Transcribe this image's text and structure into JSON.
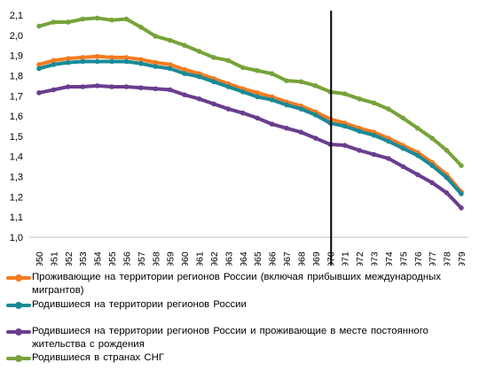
{
  "chart_data": {
    "type": "line",
    "title": "",
    "xlabel": "",
    "ylabel": "",
    "ylim": [
      1.0,
      2.1
    ],
    "ytick_step": 0.1,
    "grid": false,
    "legend_position": "bottom",
    "marker_year": 1970,
    "x": [
      "1950",
      "1951",
      "1952",
      "1953",
      "1954",
      "1955",
      "1956",
      "1957",
      "1958",
      "1959",
      "1960",
      "1961",
      "1962",
      "1963",
      "1964",
      "1965",
      "1966",
      "1967",
      "1968",
      "1969",
      "1970",
      "1971",
      "1972",
      "1973",
      "1974",
      "1975",
      "1976",
      "1977",
      "1978",
      "1979"
    ],
    "series": [
      {
        "name": "Проживающие на территории регионов России (включая прибывших международных мигрантов)",
        "color": "#F47B20",
        "values": [
          1.855,
          1.875,
          1.885,
          1.89,
          1.895,
          1.89,
          1.89,
          1.88,
          1.865,
          1.855,
          1.83,
          1.81,
          1.785,
          1.76,
          1.735,
          1.715,
          1.695,
          1.67,
          1.65,
          1.62,
          1.585,
          1.565,
          1.54,
          1.52,
          1.49,
          1.455,
          1.42,
          1.37,
          1.31,
          1.225
        ]
      },
      {
        "name": "Родившиеся на территории регионов России",
        "color": "#1A8A96",
        "values": [
          1.835,
          1.855,
          1.865,
          1.87,
          1.87,
          1.87,
          1.87,
          1.86,
          1.845,
          1.835,
          1.81,
          1.795,
          1.77,
          1.745,
          1.72,
          1.695,
          1.68,
          1.655,
          1.635,
          1.605,
          1.565,
          1.55,
          1.525,
          1.505,
          1.475,
          1.44,
          1.405,
          1.355,
          1.295,
          1.215
        ]
      },
      {
        "name": "Родившиеся на территории регионов России и проживающие в месте постоянного жительства с рождения",
        "color": "#6A3D8F",
        "values": [
          1.715,
          1.73,
          1.745,
          1.745,
          1.75,
          1.745,
          1.745,
          1.74,
          1.735,
          1.73,
          1.705,
          1.685,
          1.66,
          1.635,
          1.615,
          1.59,
          1.56,
          1.54,
          1.52,
          1.49,
          1.46,
          1.455,
          1.43,
          1.41,
          1.39,
          1.35,
          1.31,
          1.27,
          1.22,
          1.145
        ]
      },
      {
        "name": "Родившиеся в странах СНГ",
        "color": "#77A33A",
        "values": [
          2.045,
          2.065,
          2.065,
          2.08,
          2.085,
          2.075,
          2.08,
          2.04,
          1.995,
          1.975,
          1.95,
          1.92,
          1.89,
          1.875,
          1.84,
          1.825,
          1.81,
          1.775,
          1.77,
          1.75,
          1.72,
          1.71,
          1.685,
          1.665,
          1.635,
          1.59,
          1.54,
          1.49,
          1.43,
          1.355
        ]
      }
    ]
  },
  "legend": {
    "items": [
      {
        "label": "Проживающие на территории регионов России (включая прибывших международных мигрантов)",
        "color": "#F47B20"
      },
      {
        "label": "Родившиеся на территории регионов России",
        "color": "#1A8A96"
      },
      {
        "label": "Родившиеся на территории регионов России и проживающие в месте постоянного жительства с рождения",
        "color": "#6A3D8F"
      },
      {
        "label": "Родившиеся в странах СНГ",
        "color": "#77A33A"
      }
    ]
  }
}
